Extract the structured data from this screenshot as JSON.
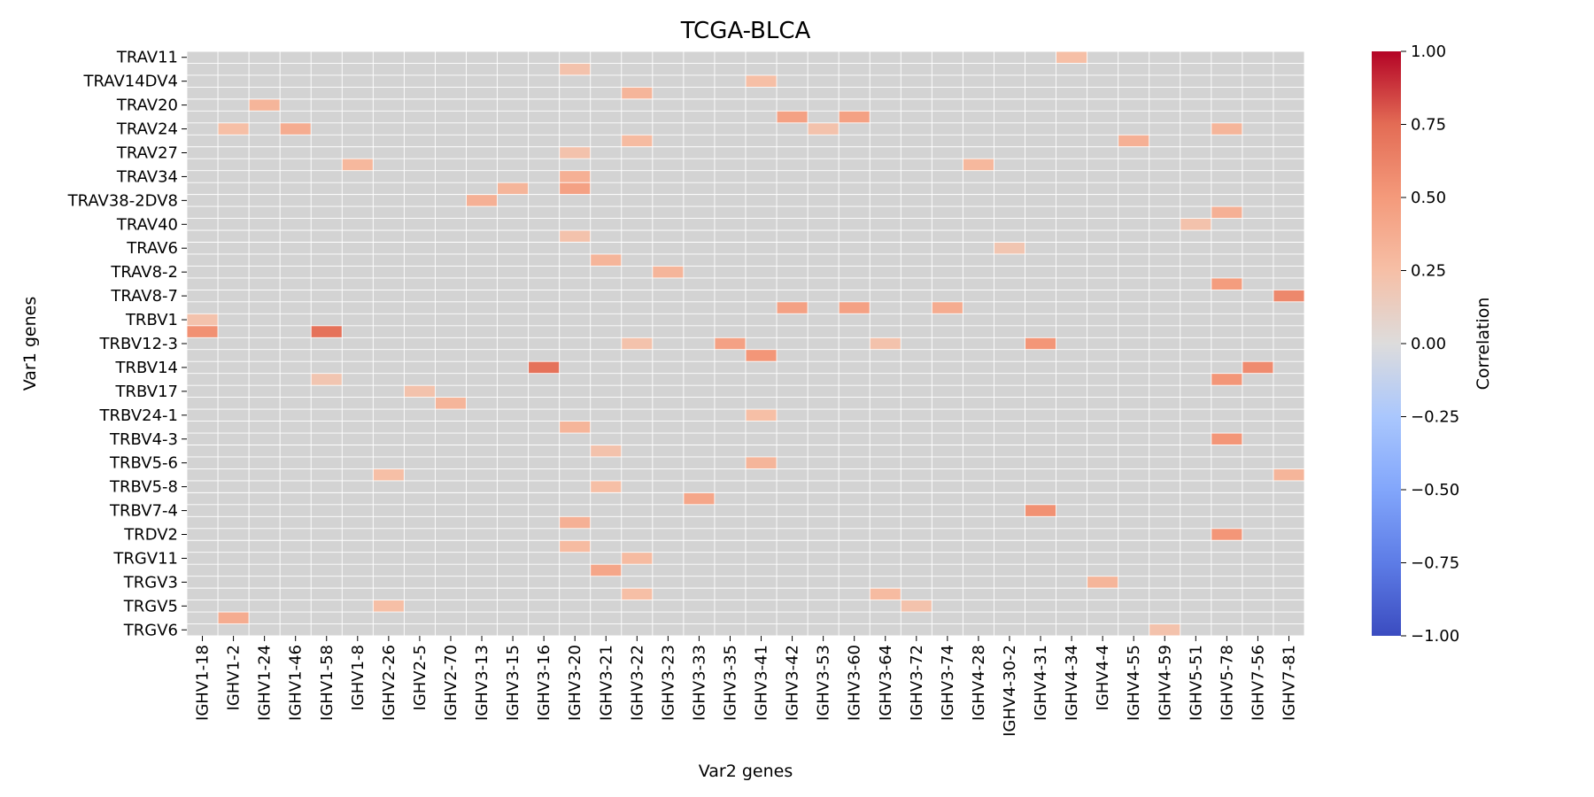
{
  "chart_data": {
    "type": "heatmap",
    "title": "TCGA-BLCA",
    "xlabel": "Var2 genes",
    "ylabel": "Var1 genes",
    "colorbar": {
      "label": "Correlation",
      "range": [
        -1.0,
        1.0
      ],
      "ticks": [
        "1.00",
        "0.75",
        "0.50",
        "0.25",
        "0.00",
        "−0.25",
        "−0.50",
        "−0.75",
        "−1.00"
      ],
      "colormap": "coolwarm"
    },
    "background_color": "#d3d3d3",
    "x_categories": [
      "IGHV1-18",
      "IGHV1-2",
      "IGHV1-24",
      "IGHV1-46",
      "IGHV1-58",
      "IGHV1-8",
      "IGHV2-26",
      "IGHV2-5",
      "IGHV2-70",
      "IGHV3-13",
      "IGHV3-15",
      "IGHV3-16",
      "IGHV3-20",
      "IGHV3-21",
      "IGHV3-22",
      "IGHV3-23",
      "IGHV3-33",
      "IGHV3-35",
      "IGHV3-41",
      "IGHV3-42",
      "IGHV3-53",
      "IGHV3-60",
      "IGHV3-64",
      "IGHV3-72",
      "IGHV3-74",
      "IGHV4-28",
      "IGHV4-30-2",
      "IGHV4-31",
      "IGHV4-34",
      "IGHV4-4",
      "IGHV4-55",
      "IGHV4-59",
      "IGHV5-51",
      "IGHV5-78",
      "IGHV7-56",
      "IGHV7-81"
    ],
    "y_labels": [
      "TRAV11",
      "TRAV14DV4",
      "TRAV20",
      "TRAV24",
      "TRAV27",
      "TRAV34",
      "TRAV38-2DV8",
      "TRAV40",
      "TRAV6",
      "TRAV8-2",
      "TRAV8-7",
      "TRBV1",
      "TRBV12-3",
      "TRBV14",
      "TRBV17",
      "TRBV24-1",
      "TRBV4-3",
      "TRBV5-6",
      "TRBV5-8",
      "TRBV7-4",
      "TRDV2",
      "TRGV11",
      "TRGV3",
      "TRGV5",
      "TRGV6"
    ],
    "n_rows": 49,
    "cells": [
      {
        "row": 0,
        "col": 28,
        "value": 0.25
      },
      {
        "row": 1,
        "col": 12,
        "value": 0.22
      },
      {
        "row": 2,
        "col": 18,
        "value": 0.25
      },
      {
        "row": 3,
        "col": 14,
        "value": 0.32
      },
      {
        "row": 4,
        "col": 2,
        "value": 0.32
      },
      {
        "row": 5,
        "col": 19,
        "value": 0.45
      },
      {
        "row": 5,
        "col": 21,
        "value": 0.45
      },
      {
        "row": 6,
        "col": 1,
        "value": 0.25
      },
      {
        "row": 6,
        "col": 3,
        "value": 0.38
      },
      {
        "row": 6,
        "col": 20,
        "value": 0.22
      },
      {
        "row": 6,
        "col": 33,
        "value": 0.32
      },
      {
        "row": 7,
        "col": 14,
        "value": 0.28
      },
      {
        "row": 7,
        "col": 30,
        "value": 0.35
      },
      {
        "row": 8,
        "col": 12,
        "value": 0.22
      },
      {
        "row": 9,
        "col": 5,
        "value": 0.3
      },
      {
        "row": 9,
        "col": 25,
        "value": 0.3
      },
      {
        "row": 10,
        "col": 12,
        "value": 0.35
      },
      {
        "row": 11,
        "col": 10,
        "value": 0.32
      },
      {
        "row": 11,
        "col": 12,
        "value": 0.45
      },
      {
        "row": 12,
        "col": 9,
        "value": 0.35
      },
      {
        "row": 13,
        "col": 33,
        "value": 0.35
      },
      {
        "row": 14,
        "col": 32,
        "value": 0.22
      },
      {
        "row": 15,
        "col": 12,
        "value": 0.22
      },
      {
        "row": 16,
        "col": 26,
        "value": 0.2
      },
      {
        "row": 17,
        "col": 13,
        "value": 0.32
      },
      {
        "row": 18,
        "col": 15,
        "value": 0.32
      },
      {
        "row": 19,
        "col": 33,
        "value": 0.48
      },
      {
        "row": 20,
        "col": 35,
        "value": 0.6
      },
      {
        "row": 21,
        "col": 19,
        "value": 0.45
      },
      {
        "row": 21,
        "col": 21,
        "value": 0.45
      },
      {
        "row": 21,
        "col": 24,
        "value": 0.38
      },
      {
        "row": 22,
        "col": 0,
        "value": 0.22
      },
      {
        "row": 23,
        "col": 0,
        "value": 0.55
      },
      {
        "row": 23,
        "col": 4,
        "value": 0.72
      },
      {
        "row": 24,
        "col": 14,
        "value": 0.22
      },
      {
        "row": 24,
        "col": 17,
        "value": 0.45
      },
      {
        "row": 24,
        "col": 22,
        "value": 0.22
      },
      {
        "row": 24,
        "col": 27,
        "value": 0.52
      },
      {
        "row": 25,
        "col": 18,
        "value": 0.52
      },
      {
        "row": 26,
        "col": 11,
        "value": 0.72
      },
      {
        "row": 26,
        "col": 34,
        "value": 0.58
      },
      {
        "row": 27,
        "col": 4,
        "value": 0.2
      },
      {
        "row": 27,
        "col": 33,
        "value": 0.52
      },
      {
        "row": 28,
        "col": 7,
        "value": 0.22
      },
      {
        "row": 29,
        "col": 8,
        "value": 0.32
      },
      {
        "row": 30,
        "col": 18,
        "value": 0.25
      },
      {
        "row": 31,
        "col": 12,
        "value": 0.32
      },
      {
        "row": 32,
        "col": 33,
        "value": 0.52
      },
      {
        "row": 33,
        "col": 13,
        "value": 0.22
      },
      {
        "row": 34,
        "col": 18,
        "value": 0.32
      },
      {
        "row": 35,
        "col": 6,
        "value": 0.25
      },
      {
        "row": 35,
        "col": 35,
        "value": 0.32
      },
      {
        "row": 36,
        "col": 13,
        "value": 0.25
      },
      {
        "row": 37,
        "col": 16,
        "value": 0.42
      },
      {
        "row": 38,
        "col": 27,
        "value": 0.55
      },
      {
        "row": 39,
        "col": 12,
        "value": 0.35
      },
      {
        "row": 40,
        "col": 33,
        "value": 0.52
      },
      {
        "row": 41,
        "col": 12,
        "value": 0.28
      },
      {
        "row": 42,
        "col": 14,
        "value": 0.28
      },
      {
        "row": 43,
        "col": 13,
        "value": 0.42
      },
      {
        "row": 44,
        "col": 29,
        "value": 0.32
      },
      {
        "row": 45,
        "col": 14,
        "value": 0.25
      },
      {
        "row": 45,
        "col": 22,
        "value": 0.28
      },
      {
        "row": 46,
        "col": 6,
        "value": 0.25
      },
      {
        "row": 46,
        "col": 23,
        "value": 0.22
      },
      {
        "row": 47,
        "col": 1,
        "value": 0.38
      },
      {
        "row": 48,
        "col": 31,
        "value": 0.22
      }
    ]
  }
}
